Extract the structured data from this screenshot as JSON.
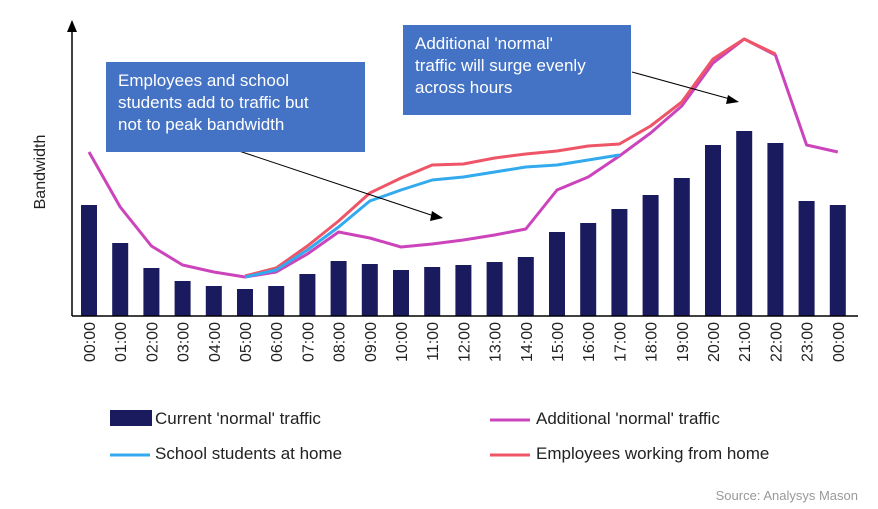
{
  "chart_data": {
    "type": "bar",
    "ylabel": "Bandwidth",
    "categories": [
      "00:00",
      "01:00",
      "02:00",
      "03:00",
      "04:00",
      "05:00",
      "06:00",
      "07:00",
      "08:00",
      "09:00",
      "10:00",
      "11:00",
      "12:00",
      "13:00",
      "14:00",
      "15:00",
      "16:00",
      "17:00",
      "18:00",
      "19:00",
      "20:00",
      "21:00",
      "22:00",
      "23:00",
      "00:00"
    ],
    "ylim": [
      0,
      300
    ],
    "series": [
      {
        "name": "Current 'normal' traffic",
        "type": "bar",
        "color": "#1a1a5e",
        "values": [
          111,
          73,
          48,
          35,
          30,
          27,
          30,
          42,
          55,
          52,
          46,
          49,
          51,
          54,
          59,
          84,
          93,
          107,
          121,
          138,
          171,
          185,
          173,
          115,
          111
        ]
      },
      {
        "name": "Additional 'normal' traffic",
        "type": "line",
        "color": "#cc44bb",
        "values": [
          164,
          109,
          70,
          51,
          44,
          39,
          44,
          62,
          84,
          78,
          69,
          72,
          76,
          81,
          87,
          126,
          139,
          160,
          183,
          210,
          253,
          277,
          261,
          171,
          164
        ]
      },
      {
        "name": "School students at home",
        "type": "line",
        "color": "#33aaee",
        "values": [
          null,
          null,
          null,
          null,
          null,
          39,
          46,
          66,
          89,
          115,
          126,
          136,
          139,
          144,
          149,
          151,
          156,
          161,
          null,
          null,
          null,
          null,
          null,
          null,
          null
        ]
      },
      {
        "name": "Employees working from home",
        "type": "line",
        "color": "#ee5566",
        "values": [
          null,
          null,
          null,
          null,
          null,
          40,
          48,
          70,
          95,
          123,
          138,
          151,
          152,
          158,
          162,
          165,
          170,
          172,
          190,
          214,
          257,
          277,
          262,
          null,
          null
        ]
      }
    ],
    "legend_position": "bottom",
    "annotations": [
      "Employees and school students add to traffic but not to peak bandwidth",
      "Additional 'normal' traffic will surge evenly across hours"
    ]
  },
  "annotation_left": {
    "line1": "Employees and school",
    "line2": "students add to traffic but",
    "line3": "not to peak bandwidth"
  },
  "annotation_right": {
    "line1": "Additional 'normal'",
    "line2": "traffic will surge evenly",
    "line3": "across hours"
  },
  "legend": {
    "current": "Current 'normal' traffic",
    "additional": "Additional 'normal' traffic",
    "students": "School students at home",
    "employees": "Employees working from home"
  },
  "source": "Source: Analysys Mason"
}
